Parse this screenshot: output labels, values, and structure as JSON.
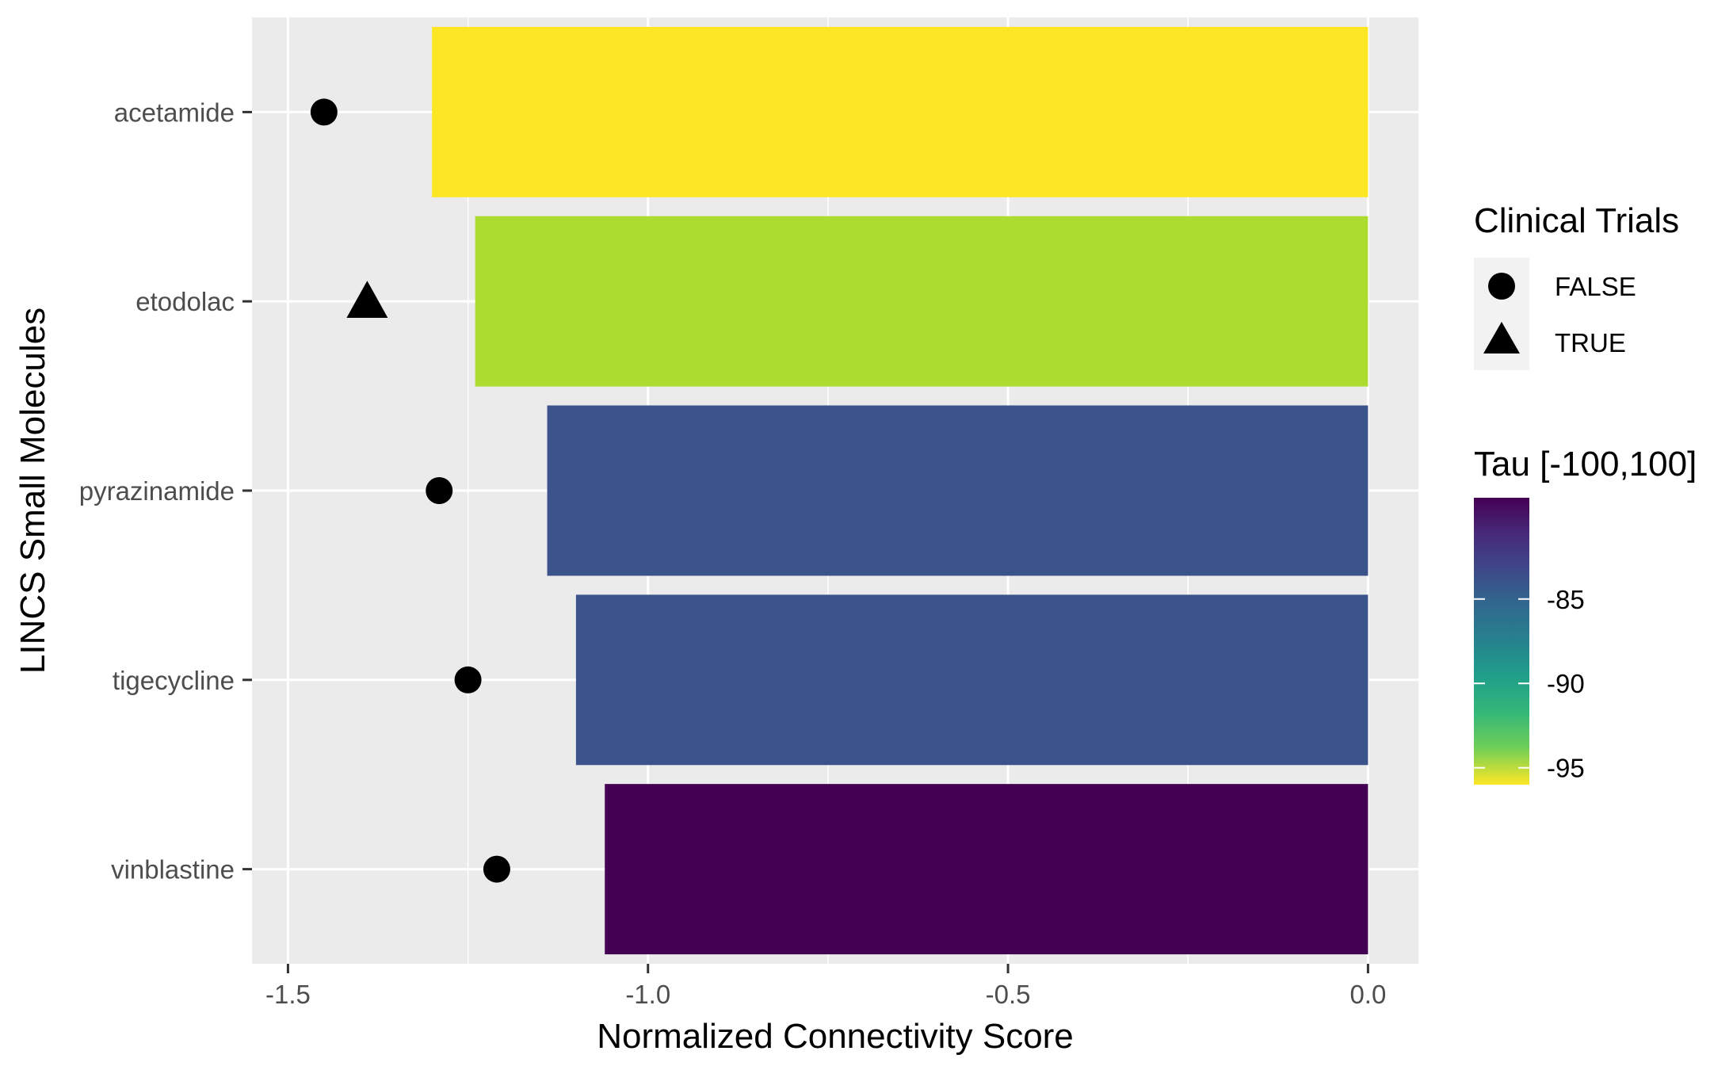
{
  "chart_data": {
    "type": "bar",
    "orientation": "horizontal",
    "xlabel": "Normalized Connectivity Score",
    "ylabel": "LINCS Small Molecules",
    "xlim": [
      -1.55,
      0.07
    ],
    "x_ticks": [
      -1.5,
      -1.0,
      -0.5,
      0.0
    ],
    "x_tick_labels": [
      "-1.5",
      "-1.0",
      "-0.5",
      "0.0"
    ],
    "grid": true,
    "categories": [
      "acetamide",
      "etodolac",
      "pyrazinamide",
      "tigecycline",
      "vinblastine"
    ],
    "series": [
      {
        "kind": "bar",
        "values": [
          -1.3,
          -1.24,
          -1.14,
          -1.1,
          -1.06
        ],
        "tau": [
          -96,
          -94,
          -84,
          -84,
          -79
        ],
        "colors": [
          "#fde725",
          "#addc30",
          "#3b528b",
          "#3b528b",
          "#440154"
        ]
      },
      {
        "kind": "point",
        "values": [
          -1.45,
          -1.39,
          -1.29,
          -1.25,
          -1.21
        ],
        "clinical_trials": [
          "FALSE",
          "TRUE",
          "FALSE",
          "FALSE",
          "FALSE"
        ]
      }
    ],
    "legends": {
      "shape": {
        "title": "Clinical Trials",
        "position": "right",
        "items": [
          {
            "label": "FALSE",
            "shape": "circle"
          },
          {
            "label": "TRUE",
            "shape": "triangle"
          }
        ]
      },
      "color": {
        "title": "Tau [-100,100]",
        "position": "right",
        "range": [
          -96,
          -79
        ],
        "ticks": [
          -85,
          -90,
          -95
        ],
        "tick_labels": [
          "-85",
          "-90",
          "-95"
        ],
        "gradient_top": "#440154",
        "gradient_bottom": "#fde725"
      }
    },
    "colors": {
      "panel_background": "#ebebeb",
      "grid_major": "#ffffff",
      "marker": "#000000"
    }
  }
}
